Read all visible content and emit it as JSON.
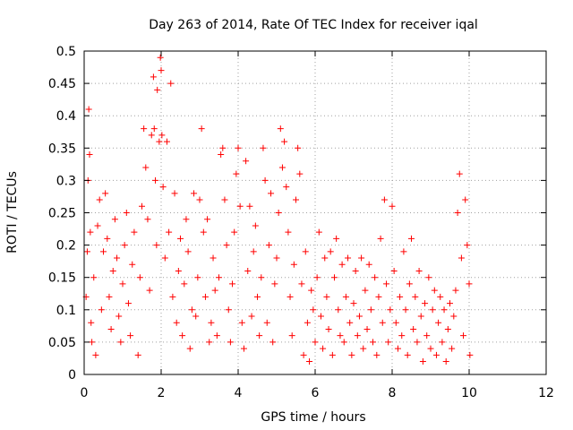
{
  "chart_data": {
    "type": "scatter",
    "title": "Day 263 of 2014, Rate Of TEC Index for receiver iqal",
    "xlabel": "GPS time / hours",
    "ylabel": "ROTI / TECUs",
    "xlim": [
      0,
      12
    ],
    "ylim": [
      0,
      0.5
    ],
    "xticks": [
      0,
      2,
      4,
      6,
      8,
      10,
      12
    ],
    "yticks": [
      0,
      0.05,
      0.1,
      0.15,
      0.2,
      0.25,
      0.3,
      0.35,
      0.4,
      0.45,
      0.5
    ],
    "grid": true,
    "marker": "+",
    "series": [
      {
        "name": "ROTI",
        "color": "#ff0000",
        "points": [
          [
            0.05,
            0.12
          ],
          [
            0.08,
            0.19
          ],
          [
            0.1,
            0.3
          ],
          [
            0.12,
            0.41
          ],
          [
            0.14,
            0.34
          ],
          [
            0.16,
            0.22
          ],
          [
            0.18,
            0.08
          ],
          [
            0.2,
            0.05
          ],
          [
            0.25,
            0.15
          ],
          [
            0.3,
            0.03
          ],
          [
            0.35,
            0.23
          ],
          [
            0.4,
            0.27
          ],
          [
            0.45,
            0.1
          ],
          [
            0.5,
            0.19
          ],
          [
            0.55,
            0.28
          ],
          [
            0.6,
            0.21
          ],
          [
            0.65,
            0.12
          ],
          [
            0.7,
            0.07
          ],
          [
            0.75,
            0.16
          ],
          [
            0.8,
            0.24
          ],
          [
            0.85,
            0.18
          ],
          [
            0.9,
            0.09
          ],
          [
            0.95,
            0.05
          ],
          [
            1.0,
            0.14
          ],
          [
            1.05,
            0.2
          ],
          [
            1.1,
            0.25
          ],
          [
            1.15,
            0.11
          ],
          [
            1.2,
            0.06
          ],
          [
            1.25,
            0.17
          ],
          [
            1.3,
            0.22
          ],
          [
            1.4,
            0.03
          ],
          [
            1.45,
            0.15
          ],
          [
            1.5,
            0.26
          ],
          [
            1.55,
            0.38
          ],
          [
            1.6,
            0.32
          ],
          [
            1.65,
            0.24
          ],
          [
            1.7,
            0.13
          ],
          [
            1.75,
            0.37
          ],
          [
            1.8,
            0.46
          ],
          [
            1.82,
            0.38
          ],
          [
            1.85,
            0.3
          ],
          [
            1.88,
            0.2
          ],
          [
            1.9,
            0.44
          ],
          [
            1.95,
            0.36
          ],
          [
            1.98,
            0.49
          ],
          [
            2.0,
            0.47
          ],
          [
            2.02,
            0.37
          ],
          [
            2.05,
            0.29
          ],
          [
            2.1,
            0.18
          ],
          [
            2.15,
            0.36
          ],
          [
            2.2,
            0.22
          ],
          [
            2.25,
            0.45
          ],
          [
            2.3,
            0.12
          ],
          [
            2.35,
            0.28
          ],
          [
            2.4,
            0.08
          ],
          [
            2.45,
            0.16
          ],
          [
            2.5,
            0.21
          ],
          [
            2.55,
            0.06
          ],
          [
            2.6,
            0.14
          ],
          [
            2.65,
            0.24
          ],
          [
            2.7,
            0.19
          ],
          [
            2.75,
            0.04
          ],
          [
            2.8,
            0.1
          ],
          [
            2.85,
            0.28
          ],
          [
            2.9,
            0.09
          ],
          [
            2.95,
            0.15
          ],
          [
            3.0,
            0.27
          ],
          [
            3.05,
            0.38
          ],
          [
            3.1,
            0.22
          ],
          [
            3.15,
            0.12
          ],
          [
            3.2,
            0.24
          ],
          [
            3.25,
            0.05
          ],
          [
            3.3,
            0.08
          ],
          [
            3.35,
            0.18
          ],
          [
            3.4,
            0.13
          ],
          [
            3.45,
            0.06
          ],
          [
            3.5,
            0.15
          ],
          [
            3.55,
            0.34
          ],
          [
            3.6,
            0.35
          ],
          [
            3.65,
            0.27
          ],
          [
            3.7,
            0.2
          ],
          [
            3.75,
            0.1
          ],
          [
            3.8,
            0.05
          ],
          [
            3.85,
            0.14
          ],
          [
            3.9,
            0.22
          ],
          [
            3.95,
            0.31
          ],
          [
            4.0,
            0.35
          ],
          [
            4.05,
            0.26
          ],
          [
            4.1,
            0.08
          ],
          [
            4.15,
            0.04
          ],
          [
            4.2,
            0.33
          ],
          [
            4.25,
            0.16
          ],
          [
            4.3,
            0.26
          ],
          [
            4.35,
            0.09
          ],
          [
            4.4,
            0.19
          ],
          [
            4.45,
            0.23
          ],
          [
            4.5,
            0.12
          ],
          [
            4.55,
            0.06
          ],
          [
            4.6,
            0.15
          ],
          [
            4.65,
            0.35
          ],
          [
            4.7,
            0.3
          ],
          [
            4.75,
            0.08
          ],
          [
            4.8,
            0.2
          ],
          [
            4.85,
            0.28
          ],
          [
            4.9,
            0.05
          ],
          [
            4.95,
            0.14
          ],
          [
            5.0,
            0.18
          ],
          [
            5.05,
            0.25
          ],
          [
            5.1,
            0.38
          ],
          [
            5.15,
            0.32
          ],
          [
            5.2,
            0.36
          ],
          [
            5.25,
            0.29
          ],
          [
            5.3,
            0.22
          ],
          [
            5.35,
            0.12
          ],
          [
            5.4,
            0.06
          ],
          [
            5.45,
            0.17
          ],
          [
            5.5,
            0.27
          ],
          [
            5.55,
            0.35
          ],
          [
            5.6,
            0.31
          ],
          [
            5.65,
            0.14
          ],
          [
            5.7,
            0.03
          ],
          [
            5.75,
            0.19
          ],
          [
            5.8,
            0.08
          ],
          [
            5.85,
            0.02
          ],
          [
            5.9,
            0.13
          ],
          [
            5.95,
            0.1
          ],
          [
            6.0,
            0.05
          ],
          [
            6.05,
            0.15
          ],
          [
            6.1,
            0.22
          ],
          [
            6.15,
            0.09
          ],
          [
            6.2,
            0.04
          ],
          [
            6.25,
            0.18
          ],
          [
            6.3,
            0.12
          ],
          [
            6.35,
            0.07
          ],
          [
            6.4,
            0.19
          ],
          [
            6.45,
            0.03
          ],
          [
            6.5,
            0.15
          ],
          [
            6.55,
            0.21
          ],
          [
            6.6,
            0.1
          ],
          [
            6.65,
            0.06
          ],
          [
            6.7,
            0.17
          ],
          [
            6.75,
            0.05
          ],
          [
            6.8,
            0.12
          ],
          [
            6.85,
            0.18
          ],
          [
            6.9,
            0.08
          ],
          [
            6.95,
            0.03
          ],
          [
            7.0,
            0.11
          ],
          [
            7.05,
            0.16
          ],
          [
            7.1,
            0.06
          ],
          [
            7.15,
            0.09
          ],
          [
            7.2,
            0.18
          ],
          [
            7.25,
            0.04
          ],
          [
            7.3,
            0.13
          ],
          [
            7.35,
            0.07
          ],
          [
            7.4,
            0.17
          ],
          [
            7.45,
            0.1
          ],
          [
            7.5,
            0.05
          ],
          [
            7.55,
            0.15
          ],
          [
            7.6,
            0.03
          ],
          [
            7.65,
            0.12
          ],
          [
            7.7,
            0.21
          ],
          [
            7.75,
            0.08
          ],
          [
            7.8,
            0.27
          ],
          [
            7.85,
            0.14
          ],
          [
            7.9,
            0.05
          ],
          [
            7.95,
            0.1
          ],
          [
            8.0,
            0.26
          ],
          [
            8.05,
            0.16
          ],
          [
            8.1,
            0.08
          ],
          [
            8.15,
            0.04
          ],
          [
            8.2,
            0.12
          ],
          [
            8.25,
            0.06
          ],
          [
            8.3,
            0.19
          ],
          [
            8.35,
            0.1
          ],
          [
            8.4,
            0.03
          ],
          [
            8.45,
            0.14
          ],
          [
            8.5,
            0.21
          ],
          [
            8.55,
            0.07
          ],
          [
            8.6,
            0.12
          ],
          [
            8.65,
            0.05
          ],
          [
            8.7,
            0.16
          ],
          [
            8.75,
            0.09
          ],
          [
            8.8,
            0.02
          ],
          [
            8.85,
            0.11
          ],
          [
            8.9,
            0.06
          ],
          [
            8.95,
            0.15
          ],
          [
            9.0,
            0.04
          ],
          [
            9.05,
            0.1
          ],
          [
            9.1,
            0.13
          ],
          [
            9.15,
            0.03
          ],
          [
            9.2,
            0.08
          ],
          [
            9.25,
            0.12
          ],
          [
            9.3,
            0.05
          ],
          [
            9.35,
            0.1
          ],
          [
            9.4,
            0.02
          ],
          [
            9.45,
            0.07
          ],
          [
            9.5,
            0.11
          ],
          [
            9.55,
            0.04
          ],
          [
            9.6,
            0.09
          ],
          [
            9.65,
            0.13
          ],
          [
            9.7,
            0.25
          ],
          [
            9.75,
            0.31
          ],
          [
            9.8,
            0.18
          ],
          [
            9.85,
            0.06
          ],
          [
            9.9,
            0.27
          ],
          [
            9.95,
            0.2
          ],
          [
            10.0,
            0.14
          ],
          [
            10.02,
            0.03
          ]
        ]
      }
    ]
  }
}
